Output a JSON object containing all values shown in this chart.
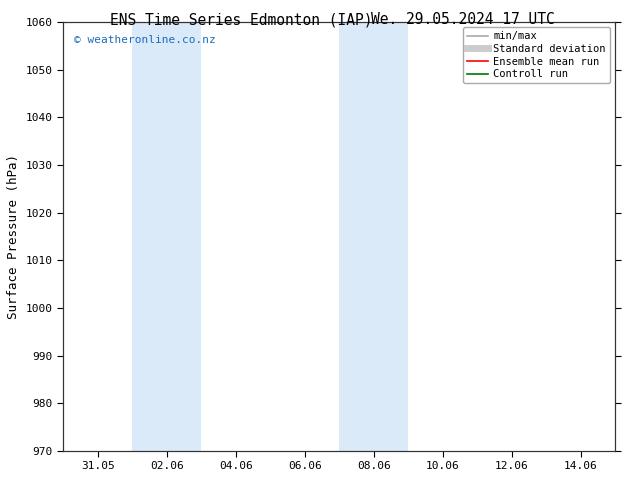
{
  "title_left": "ENS Time Series Edmonton (IAP)",
  "title_right": "We. 29.05.2024 17 UTC",
  "ylabel": "Surface Pressure (hPa)",
  "ylim": [
    970,
    1060
  ],
  "yticks": [
    970,
    980,
    990,
    1000,
    1010,
    1020,
    1030,
    1040,
    1050,
    1060
  ],
  "xtick_labels": [
    "31.05",
    "02.06",
    "04.06",
    "06.06",
    "08.06",
    "10.06",
    "12.06",
    "14.06"
  ],
  "xtick_positions": [
    1,
    3,
    5,
    7,
    9,
    11,
    13,
    15
  ],
  "xlim": [
    0,
    16
  ],
  "shaded_bands": [
    {
      "x_start": 2,
      "x_end": 4,
      "color": "#daeaf8"
    },
    {
      "x_start": 8,
      "x_end": 10,
      "color": "#daeaf8"
    }
  ],
  "copyright_text": "© weatheronline.co.nz",
  "copyright_color": "#1e6bbf",
  "background_color": "#ffffff",
  "legend_entries": [
    {
      "label": "min/max",
      "color": "#aaaaaa",
      "linestyle": "-",
      "linewidth": 1.2
    },
    {
      "label": "Standard deviation",
      "color": "#cccccc",
      "linestyle": "-",
      "linewidth": 5
    },
    {
      "label": "Ensemble mean run",
      "color": "#ff0000",
      "linestyle": "-",
      "linewidth": 1.2
    },
    {
      "label": "Controll run",
      "color": "#007700",
      "linestyle": "-",
      "linewidth": 1.2
    }
  ],
  "title_fontsize": 10.5,
  "ylabel_fontsize": 9,
  "tick_fontsize": 8,
  "legend_fontsize": 7.5,
  "copyright_fontsize": 8
}
